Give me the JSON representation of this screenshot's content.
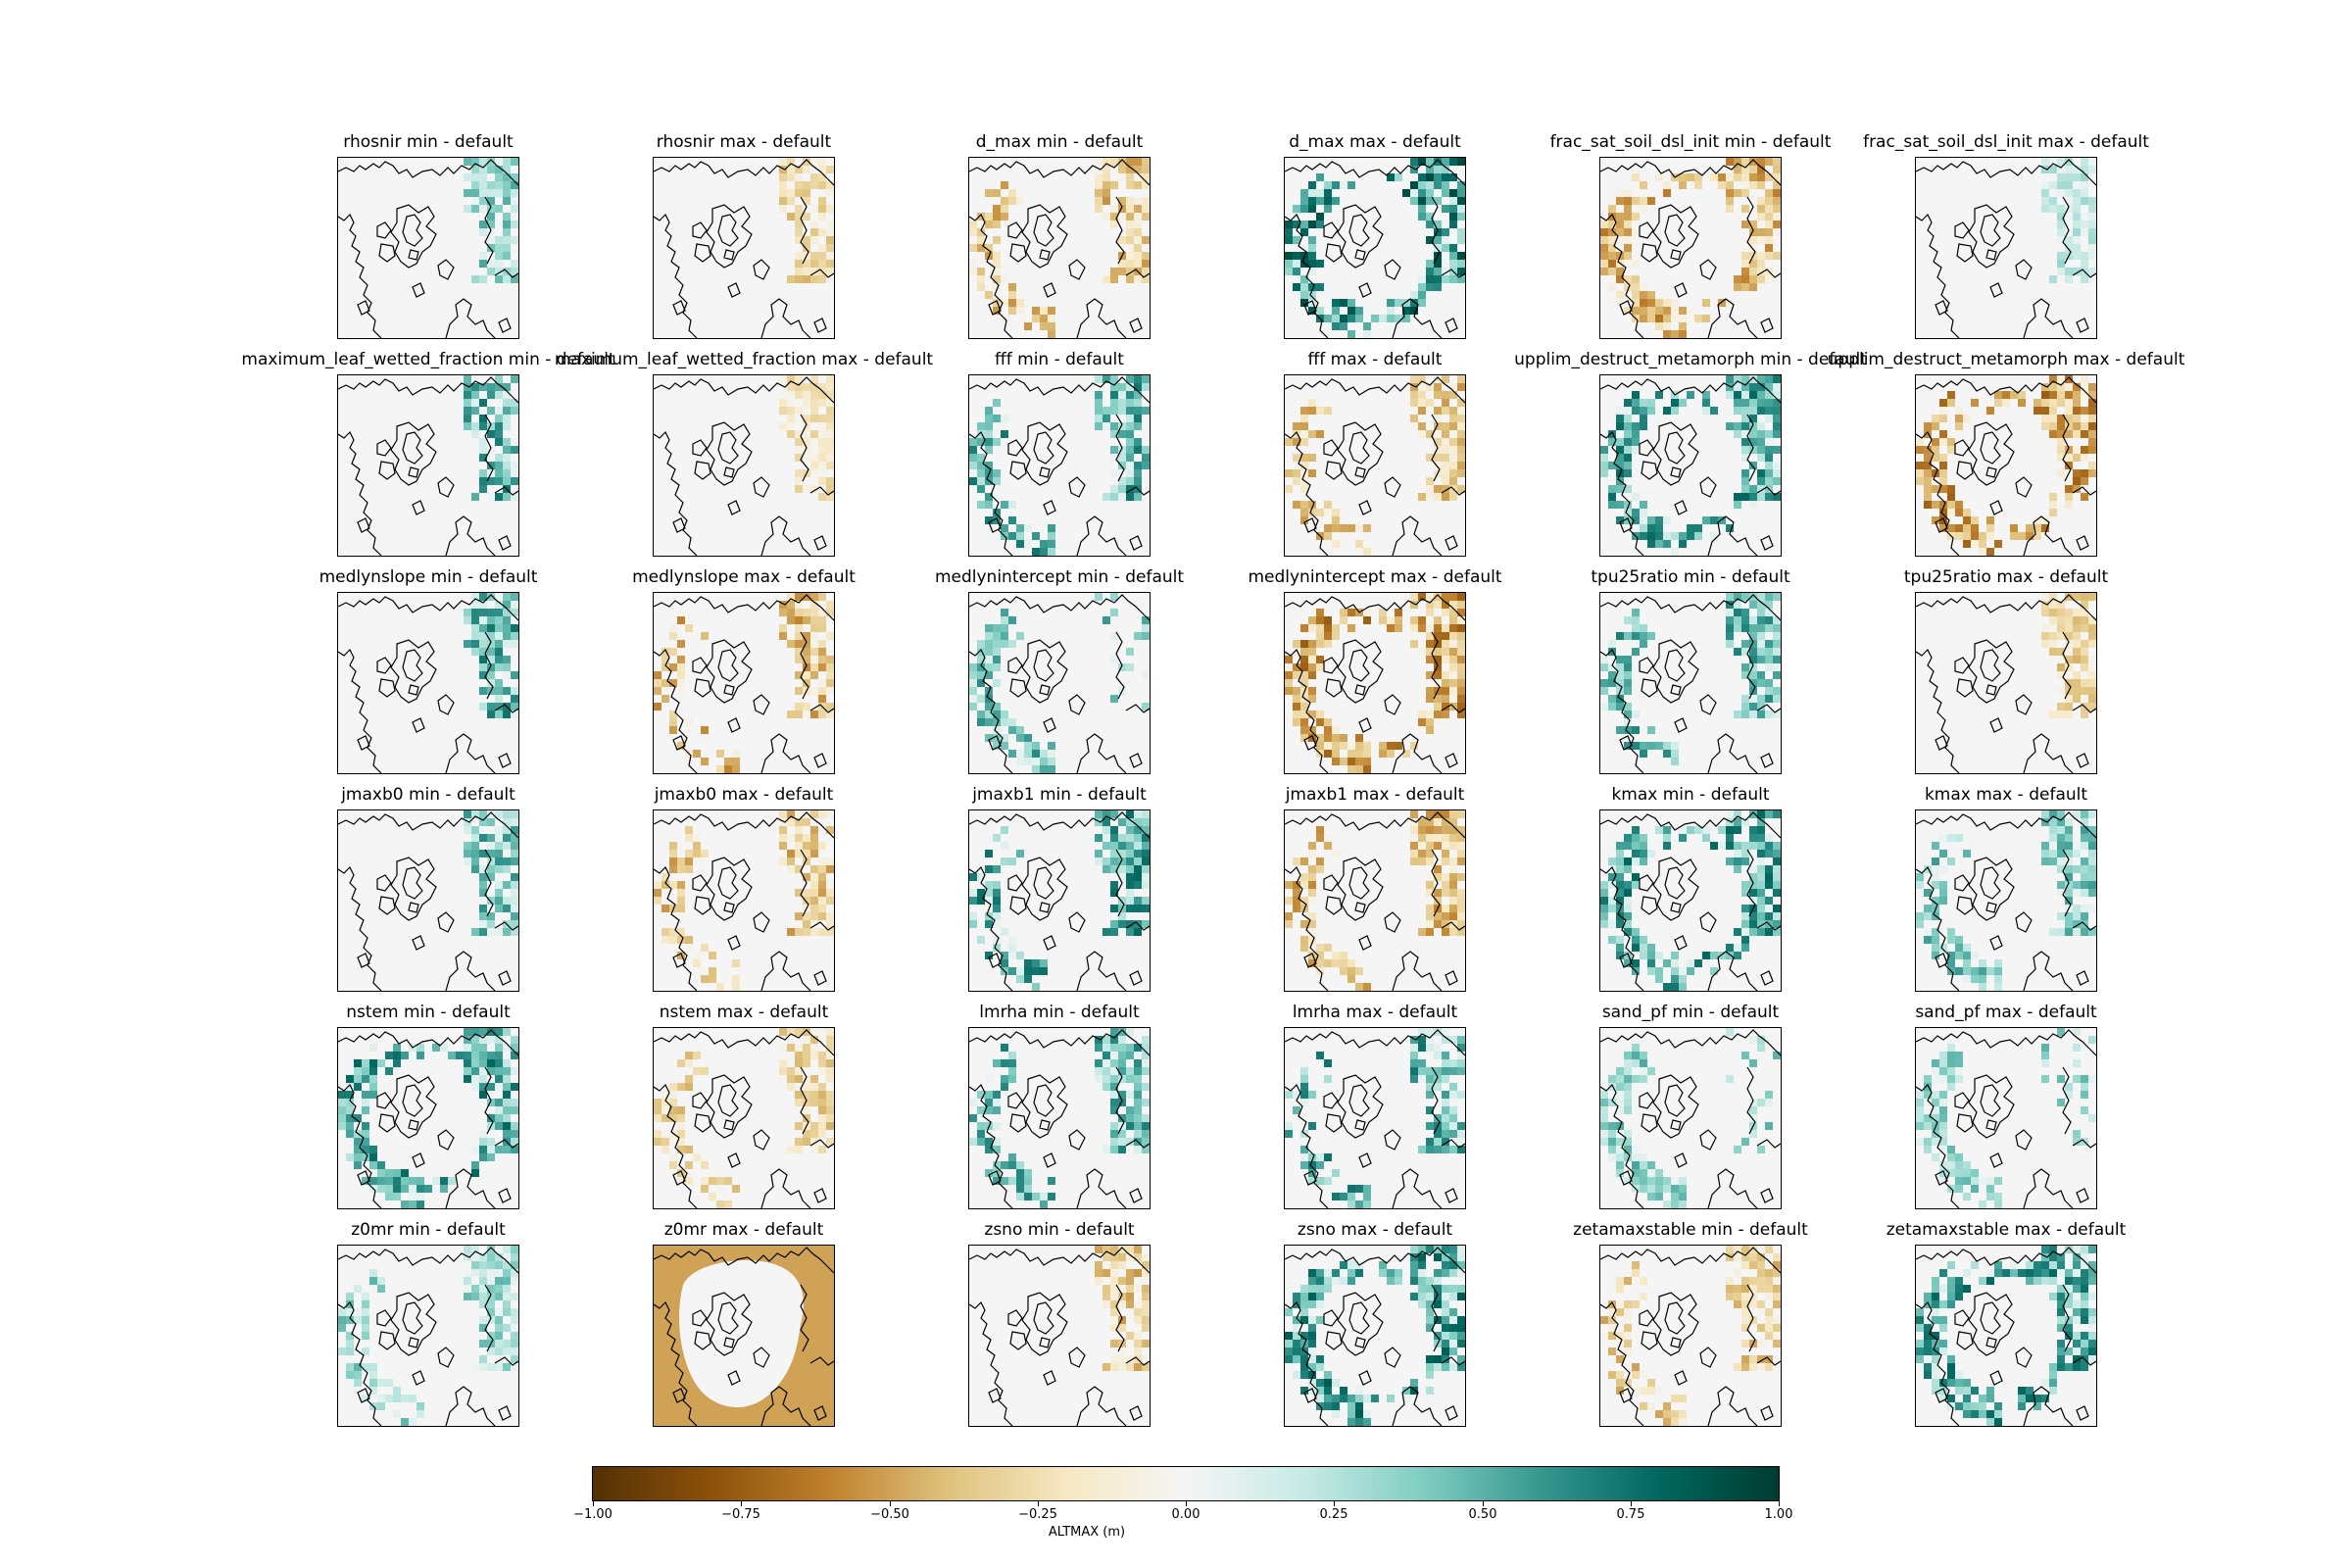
{
  "panels": [
    {
      "title": "rhosnir min - default",
      "score": 0.55,
      "zone": "east"
    },
    {
      "title": "rhosnir max - default",
      "score": -0.45,
      "zone": "east"
    },
    {
      "title": "d_max min - default",
      "score": -0.55,
      "zone": "both"
    },
    {
      "title": "d_max max - default",
      "score": 0.95,
      "zone": "all"
    },
    {
      "title": "frac_sat_soil_dsl_init min - default",
      "score": -0.65,
      "zone": "all"
    },
    {
      "title": "frac_sat_soil_dsl_init max - default",
      "score": 0.35,
      "zone": "east"
    },
    {
      "title": "maximum_leaf_wetted_fraction min - default",
      "score": 0.75,
      "zone": "east"
    },
    {
      "title": "maximum_leaf_wetted_fraction max - default",
      "score": -0.35,
      "zone": "east"
    },
    {
      "title": "fff min - default",
      "score": 0.75,
      "zone": "both"
    },
    {
      "title": "fff max - default",
      "score": -0.55,
      "zone": "both"
    },
    {
      "title": "upplim_destruct_metamorph min - default",
      "score": 0.8,
      "zone": "all"
    },
    {
      "title": "upplim_destruct_metamorph max - default",
      "score": -0.75,
      "zone": "all"
    },
    {
      "title": "medlynslope min - default",
      "score": 0.75,
      "zone": "east"
    },
    {
      "title": "medlynslope max - default",
      "score": -0.6,
      "zone": "both"
    },
    {
      "title": "medlynintercept min - default",
      "score": 0.65,
      "zone": "west"
    },
    {
      "title": "medlynintercept max - default",
      "score": -0.75,
      "zone": "all"
    },
    {
      "title": "tpu25ratio min - default",
      "score": 0.7,
      "zone": "both"
    },
    {
      "title": "tpu25ratio max - default",
      "score": -0.45,
      "zone": "east"
    },
    {
      "title": "jmaxb0 min - default",
      "score": 0.65,
      "zone": "east"
    },
    {
      "title": "jmaxb0 max - default",
      "score": -0.55,
      "zone": "both"
    },
    {
      "title": "jmaxb1 min - default",
      "score": 0.8,
      "zone": "both"
    },
    {
      "title": "jmaxb1 max - default",
      "score": -0.6,
      "zone": "both"
    },
    {
      "title": "kmax min - default",
      "score": 0.8,
      "zone": "all"
    },
    {
      "title": "kmax max - default",
      "score": 0.6,
      "zone": "both"
    },
    {
      "title": "nstem min - default",
      "score": 0.8,
      "zone": "all"
    },
    {
      "title": "nstem max - default",
      "score": -0.45,
      "zone": "both"
    },
    {
      "title": "lmrha min - default",
      "score": 0.7,
      "zone": "both"
    },
    {
      "title": "lmrha max - default",
      "score": 0.75,
      "zone": "both"
    },
    {
      "title": "sand_pf min - default",
      "score": 0.55,
      "zone": "west"
    },
    {
      "title": "sand_pf max - default",
      "score": 0.5,
      "zone": "west"
    },
    {
      "title": "z0mr min - default",
      "score": 0.5,
      "zone": "both"
    },
    {
      "title": "z0mr max - default",
      "score": -0.5,
      "zone": "fill"
    },
    {
      "title": "zsno min - default",
      "score": -0.55,
      "zone": "east"
    },
    {
      "title": "zsno max - default",
      "score": 0.85,
      "zone": "all"
    },
    {
      "title": "zetamaxstable min - default",
      "score": -0.5,
      "zone": "both"
    },
    {
      "title": "zetamaxstable max - default",
      "score": 0.8,
      "zone": "all"
    }
  ],
  "chart_data": {
    "type": "heatmap",
    "layout": "6 rows x 6 columns of north polar stereographic maps",
    "quantity": "ALTMAX (m), parameter run minus default",
    "colormap": "BrBG",
    "clim": [
      -1.0,
      1.0
    ],
    "colorbar": {
      "label": "ALTMAX (m)",
      "ticks": [
        -1.0,
        -0.75,
        -0.5,
        -0.25,
        0.0,
        0.25,
        0.5,
        0.75,
        1.0
      ],
      "tick_labels": [
        "−1.00",
        "−0.75",
        "−0.50",
        "−0.25",
        "0.00",
        "0.25",
        "0.50",
        "0.75",
        "1.00"
      ],
      "orientation": "horizontal",
      "placement": "bottom"
    },
    "background_value": 0.0
  }
}
